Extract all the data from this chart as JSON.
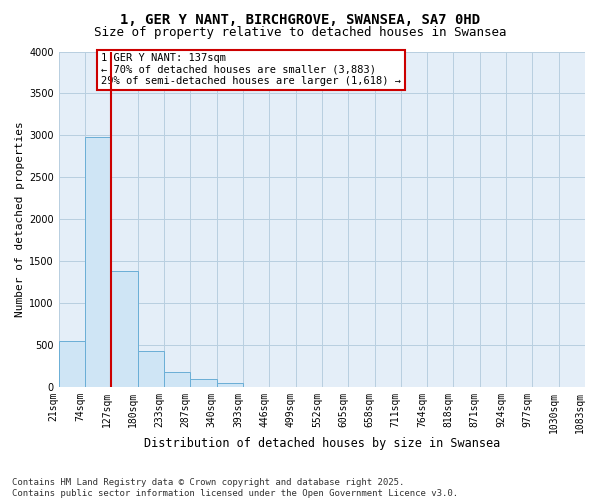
{
  "title_line1": "1, GER Y NANT, BIRCHGROVE, SWANSEA, SA7 0HD",
  "title_line2": "Size of property relative to detached houses in Swansea",
  "xlabel": "Distribution of detached houses by size in Swansea",
  "ylabel": "Number of detached properties",
  "bin_labels": [
    "21sqm",
    "74sqm",
    "127sqm",
    "180sqm",
    "233sqm",
    "287sqm",
    "340sqm",
    "393sqm",
    "446sqm",
    "499sqm",
    "552sqm",
    "605sqm",
    "658sqm",
    "711sqm",
    "764sqm",
    "818sqm",
    "871sqm",
    "924sqm",
    "977sqm",
    "1030sqm",
    "1083sqm"
  ],
  "bar_heights": [
    550,
    2980,
    1380,
    430,
    175,
    90,
    50,
    0,
    0,
    0,
    0,
    0,
    0,
    0,
    0,
    0,
    0,
    0,
    0,
    0
  ],
  "bar_facecolor": "#cfe5f5",
  "bar_edgecolor": "#6aaed6",
  "property_line_idx": 2.0,
  "property_line_color": "#cc0000",
  "ylim": [
    0,
    4000
  ],
  "yticks": [
    0,
    500,
    1000,
    1500,
    2000,
    2500,
    3000,
    3500,
    4000
  ],
  "annotation_text": "1 GER Y NANT: 137sqm\n← 70% of detached houses are smaller (3,883)\n29% of semi-detached houses are larger (1,618) →",
  "annotation_box_color": "#cc0000",
  "grid_color": "#b8cfe0",
  "background_color": "#e4eef8",
  "footer_text": "Contains HM Land Registry data © Crown copyright and database right 2025.\nContains public sector information licensed under the Open Government Licence v3.0.",
  "title_fontsize": 10,
  "subtitle_fontsize": 9,
  "annotation_fontsize": 7.5,
  "footer_fontsize": 6.5,
  "ylabel_fontsize": 8,
  "xlabel_fontsize": 8.5,
  "tick_fontsize": 7
}
